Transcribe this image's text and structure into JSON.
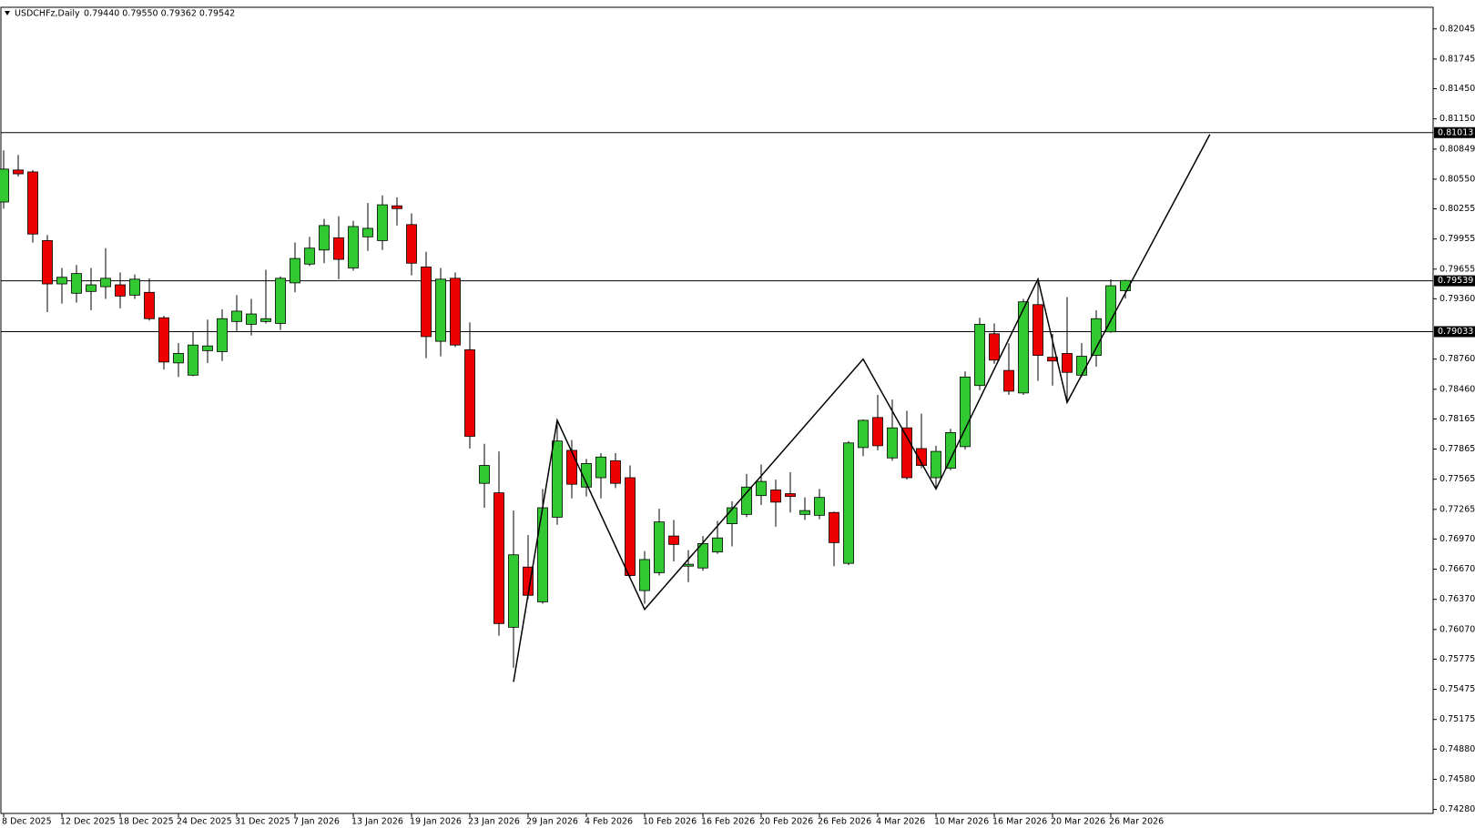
{
  "chart_data": {
    "type": "candlestick",
    "title": "USDCHFz,Daily",
    "header_text": "0.79440 0.79550 0.79362 0.79542",
    "categories": [
      "8 Dec 2025",
      null,
      null,
      null,
      "12 Dec 2025",
      null,
      null,
      null,
      "18 Dec 2025",
      null,
      null,
      null,
      "24 Dec 2025",
      null,
      null,
      null,
      "31 Dec 2025",
      null,
      null,
      null,
      "7 Jan 2026",
      null,
      null,
      null,
      "13 Jan 2026",
      null,
      null,
      null,
      "19 Jan 2026",
      null,
      null,
      null,
      "23 Jan 2026",
      null,
      null,
      null,
      "29 Jan 2026",
      null,
      null,
      null,
      "4 Feb 2026",
      null,
      null,
      null,
      "10 Feb 2026",
      null,
      null,
      null,
      "16 Feb 2026",
      null,
      null,
      null,
      "20 Feb 2026",
      null,
      null,
      null,
      "26 Feb 2026",
      null,
      null,
      null,
      "4 Mar 2026",
      null,
      null,
      null,
      "10 Mar 2026",
      null,
      null,
      null,
      "16 Mar 2026",
      null,
      null,
      null,
      "20 Mar 2026",
      null,
      null,
      null,
      "26 Mar 2026",
      null
    ],
    "open": [
      0.80323,
      0.80641,
      0.80622,
      0.79939,
      0.79508,
      0.79415,
      0.79433,
      0.7948,
      0.79499,
      0.79396,
      0.79424,
      0.79171,
      0.78722,
      0.786,
      0.78844,
      0.78834,
      0.79134,
      0.79106,
      0.79134,
      0.79115,
      0.79518,
      0.79705,
      0.79845,
      0.79967,
      0.79667,
      0.79976,
      0.79939,
      0.80285,
      0.80098,
      0.79677,
      0.78937,
      0.79564,
      0.78853,
      0.77524,
      0.7743,
      0.76092,
      0.76691,
      0.76345,
      0.77187,
      0.77852,
      0.77487,
      0.7758,
      0.77749,
      0.7758,
      0.76457,
      0.76635,
      0.77,
      0.767,
      0.76682,
      0.76841,
      0.77122,
      0.77215,
      0.77402,
      0.77458,
      0.77421,
      0.77215,
      0.77206,
      0.77234,
      0.76728,
      0.7788,
      0.78179,
      0.77777,
      0.78076,
      0.7787,
      0.7758,
      0.77674,
      0.77889,
      0.78497,
      0.79012,
      0.78647,
      0.78423,
      0.79302,
      0.78778,
      0.78816,
      0.786,
      0.78797,
      0.79031,
      0.7944
    ],
    "high": [
      0.80837,
      0.80791,
      0.80641,
      0.79995,
      0.79667,
      0.79696,
      0.79667,
      0.79864,
      0.79621,
      0.79602,
      0.79564,
      0.7919,
      0.78919,
      0.79031,
      0.79153,
      0.79256,
      0.79396,
      0.79359,
      0.79649,
      0.79583,
      0.7992,
      0.79976,
      0.80154,
      0.80182,
      0.80135,
      0.80313,
      0.80388,
      0.80369,
      0.8021,
      0.79827,
      0.79667,
      0.79621,
      0.79125,
      0.77917,
      0.77842,
      0.77253,
      0.77009,
      0.77468,
      0.78142,
      0.77955,
      0.77767,
      0.77824,
      0.77824,
      0.77702,
      0.7685,
      0.77271,
      0.77159,
      0.76859,
      0.77,
      0.7715,
      0.77346,
      0.77618,
      0.77711,
      0.77561,
      0.77636,
      0.77384,
      0.77468,
      0.77243,
      0.77945,
      0.7816,
      0.78404,
      0.78357,
      0.78245,
      0.78217,
      0.77898,
      0.78067,
      0.78638,
      0.79171,
      0.79115,
      0.78919,
      0.79359,
      0.79527,
      0.79012,
      0.79377,
      0.78919,
      0.79246,
      0.79555,
      0.7955
    ],
    "low": [
      0.80257,
      0.80575,
      0.7992,
      0.79228,
      0.79312,
      0.79321,
      0.79246,
      0.79359,
      0.79265,
      0.79359,
      0.79143,
      0.78656,
      0.78582,
      0.78591,
      0.78722,
      0.78741,
      0.7904,
      0.78994,
      0.79115,
      0.7905,
      0.79424,
      0.79686,
      0.79714,
      0.79555,
      0.79639,
      0.79836,
      0.79845,
      0.80089,
      0.79593,
      0.78769,
      0.78788,
      0.78881,
      0.7787,
      0.77281,
      0.76008,
      0.75689,
      0.76373,
      0.76326,
      0.77112,
      0.77374,
      0.77393,
      0.77374,
      0.77477,
      0.76579,
      0.76326,
      0.76607,
      0.76747,
      0.76541,
      0.76654,
      0.76822,
      0.76897,
      0.77187,
      0.77309,
      0.77093,
      0.77234,
      0.77159,
      0.77168,
      0.767,
      0.7671,
      0.77795,
      0.77852,
      0.77749,
      0.77561,
      0.77674,
      0.77468,
      0.77655,
      0.77861,
      0.78451,
      0.78713,
      0.78404,
      0.78404,
      0.78544,
      0.78497,
      0.78338,
      0.78582,
      0.78685,
      0.79022,
      0.79362
    ],
    "close": [
      0.8065,
      0.80603,
      0.80004,
      0.79508,
      0.79574,
      0.79611,
      0.79499,
      0.79564,
      0.79387,
      0.79555,
      0.79162,
      0.78731,
      0.78816,
      0.789,
      0.78891,
      0.79162,
      0.79237,
      0.79209,
      0.79162,
      0.79564,
      0.79761,
      0.79864,
      0.80089,
      0.79752,
      0.80079,
      0.80061,
      0.80295,
      0.80257,
      0.79714,
      0.78984,
      0.79555,
      0.789,
      0.77992,
      0.77702,
      0.76129,
      0.76813,
      0.7641,
      0.77281,
      0.77945,
      0.77515,
      0.77721,
      0.77786,
      0.77524,
      0.76607,
      0.76766,
      0.7714,
      0.76916,
      0.76719,
      0.76925,
      0.76981,
      0.77281,
      0.77487,
      0.77543,
      0.77337,
      0.77393,
      0.77253,
      0.77384,
      0.76934,
      0.77926,
      0.78151,
      0.77898,
      0.78076,
      0.7758,
      0.77702,
      0.77842,
      0.78029,
      0.78582,
      0.79106,
      0.7875,
      0.78441,
      0.7933,
      0.78797,
      0.78741,
      0.78628,
      0.78788,
      0.79162,
      0.7949,
      0.79542
    ],
    "up_color": "#32c832",
    "down_color": "#ee0000",
    "ylim": [
      0.7424,
      0.8226
    ],
    "yticks": [
      0.82045,
      0.81745,
      {
        "value": 0.8145,
        "label": "0.81450"
      },
      {
        "value": 0.8115,
        "label": "0.81150"
      },
      0.80849,
      {
        "value": 0.8055,
        "label": "0.80550"
      },
      0.80255,
      0.79955,
      0.79655,
      {
        "value": 0.7936,
        "label": "0.79360"
      },
      {
        "value": 0.7876,
        "label": "0.78760"
      },
      {
        "value": 0.7846,
        "label": "0.78460"
      },
      0.78165,
      0.77865,
      0.77565,
      0.77265,
      {
        "value": 0.7697,
        "label": "0.76970"
      },
      {
        "value": 0.7667,
        "label": "0.76670"
      },
      {
        "value": 0.7637,
        "label": "0.76370"
      },
      {
        "value": 0.7607,
        "label": "0.76070"
      },
      0.75775,
      0.75475,
      0.75175,
      {
        "value": 0.7488,
        "label": "0.74880"
      },
      {
        "value": 0.7458,
        "label": "0.74580"
      },
      {
        "value": 0.7428,
        "label": "0.74280"
      }
    ],
    "hlines": [
      0.81013,
      0.79539,
      0.79033
    ],
    "trendline": {
      "x": [
        35,
        38,
        44,
        59,
        64,
        71,
        73,
        82.8
      ],
      "y": [
        0.75549,
        0.78151,
        0.7627,
        0.7876,
        0.77468,
        0.79555,
        0.78329,
        0.80995
      ]
    },
    "grid": false
  }
}
